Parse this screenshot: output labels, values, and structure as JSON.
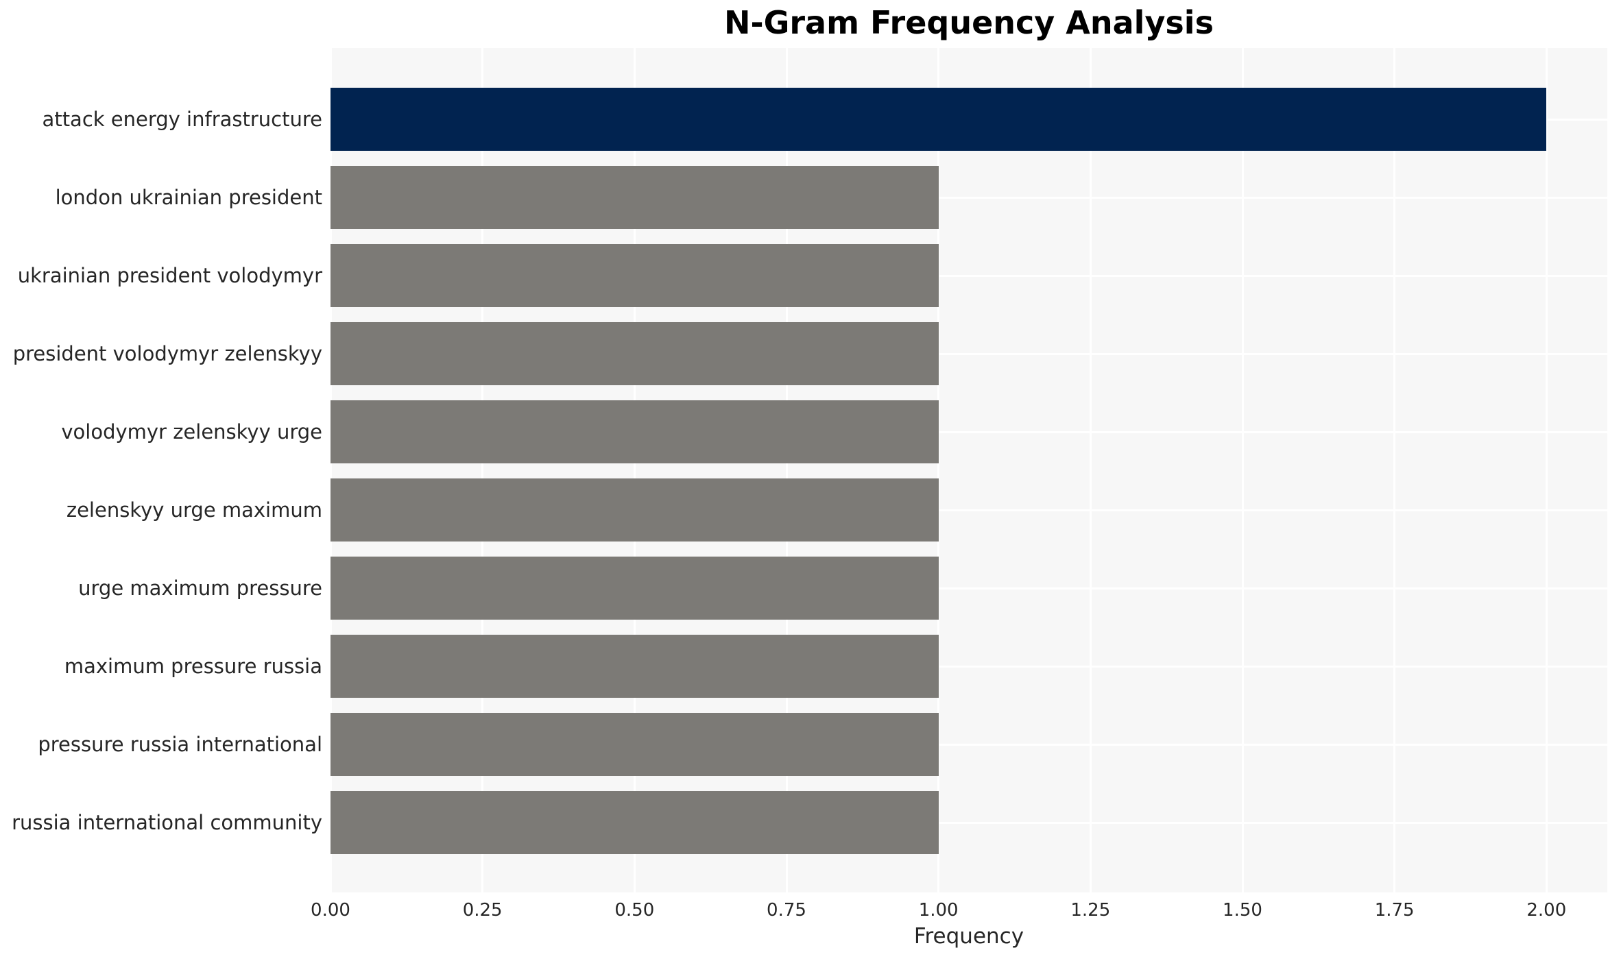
{
  "chart_data": {
    "type": "bar",
    "orientation": "horizontal",
    "title": "N-Gram Frequency Analysis",
    "xlabel": "Frequency",
    "ylabel": "",
    "categories": [
      "attack energy infrastructure",
      "london ukrainian president",
      "ukrainian president volodymyr",
      "president volodymyr zelenskyy",
      "volodymyr zelenskyy urge",
      "zelenskyy urge maximum",
      "urge maximum pressure",
      "maximum pressure russia",
      "pressure russia international",
      "russia international community"
    ],
    "values": [
      2,
      1,
      1,
      1,
      1,
      1,
      1,
      1,
      1,
      1
    ],
    "bar_colors": [
      "#012350",
      "#7C7A76",
      "#7C7A76",
      "#7C7A76",
      "#7C7A76",
      "#7C7A76",
      "#7C7A76",
      "#7C7A76",
      "#7C7A76",
      "#7C7A76"
    ],
    "x_ticks": [
      "0.00",
      "0.25",
      "0.50",
      "0.75",
      "1.00",
      "1.25",
      "1.50",
      "1.75",
      "2.00"
    ],
    "x_tick_values": [
      0,
      0.25,
      0.5,
      0.75,
      1.0,
      1.25,
      1.5,
      1.75,
      2.0
    ],
    "xlim": [
      0,
      2.1
    ],
    "grid": true,
    "legend": false,
    "colors": {
      "plot_background": "#F7F7F7",
      "figure_background": "#FFFFFF",
      "gridline": "#FFFFFF",
      "highlight_bar": "#012350",
      "default_bar": "#7C7A76",
      "tick_text": "#262626",
      "title_text": "#000000"
    }
  }
}
